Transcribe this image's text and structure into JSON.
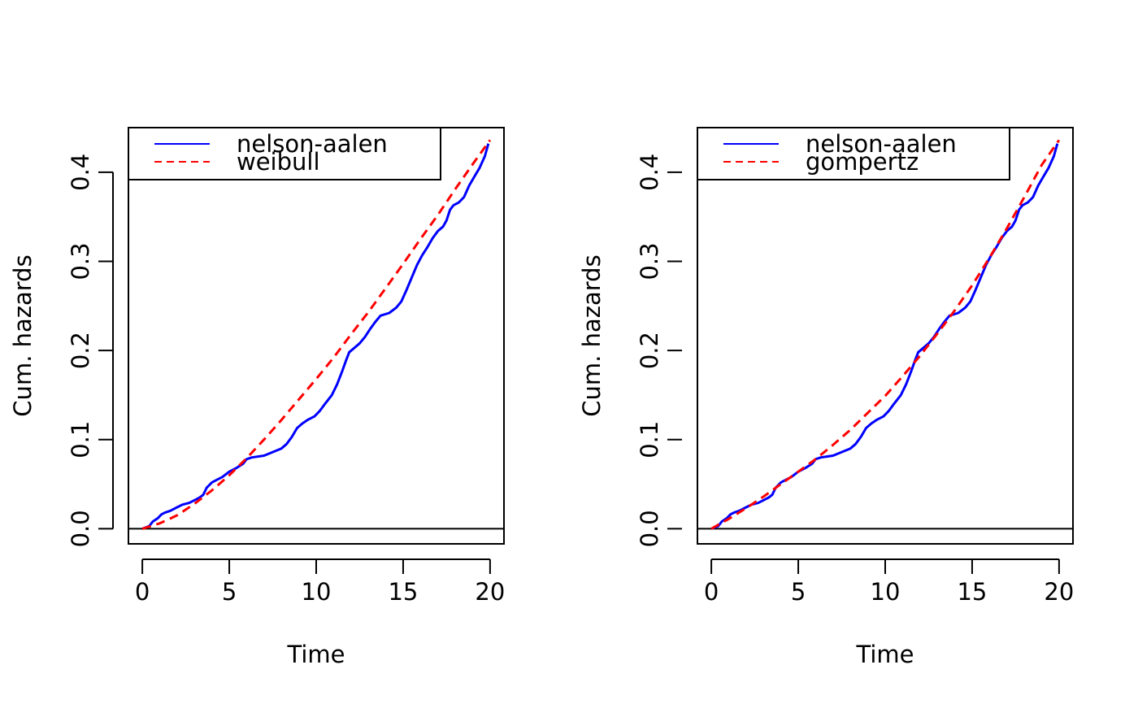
{
  "chart_data": [
    {
      "type": "line",
      "xlabel": "Time",
      "ylabel": "Cum. hazards",
      "xlim": [
        -0.8,
        20.8
      ],
      "ylim": [
        -0.017,
        0.45
      ],
      "x_ticks": [
        0,
        5,
        10,
        15,
        20
      ],
      "x_tick_labels": [
        "0",
        "5",
        "10",
        "15",
        "20"
      ],
      "y_ticks": [
        0.0,
        0.1,
        0.2,
        0.3,
        0.4
      ],
      "y_tick_labels": [
        "0.0",
        "0.1",
        "0.2",
        "0.3",
        "0.4"
      ],
      "reference_line_y": 0,
      "legend_position": "top-left",
      "series": [
        {
          "name": "nelson-aalen",
          "color": "#0000ff",
          "style": "solid",
          "points": [
            [
              0,
              0
            ],
            [
              0.4,
              0.003
            ],
            [
              0.6,
              0.008
            ],
            [
              0.9,
              0.012
            ],
            [
              1.1,
              0.016
            ],
            [
              1.3,
              0.018
            ],
            [
              1.6,
              0.02
            ],
            [
              2.0,
              0.024
            ],
            [
              2.3,
              0.027
            ],
            [
              2.7,
              0.029
            ],
            [
              3.0,
              0.032
            ],
            [
              3.3,
              0.035
            ],
            [
              3.5,
              0.038
            ],
            [
              3.7,
              0.046
            ],
            [
              4.0,
              0.052
            ],
            [
              4.3,
              0.055
            ],
            [
              4.6,
              0.058
            ],
            [
              5.0,
              0.064
            ],
            [
              5.4,
              0.068
            ],
            [
              5.8,
              0.073
            ],
            [
              6.0,
              0.078
            ],
            [
              6.3,
              0.08
            ],
            [
              7.0,
              0.082
            ],
            [
              7.5,
              0.086
            ],
            [
              8.0,
              0.09
            ],
            [
              8.3,
              0.095
            ],
            [
              8.6,
              0.103
            ],
            [
              8.9,
              0.113
            ],
            [
              9.2,
              0.118
            ],
            [
              9.5,
              0.122
            ],
            [
              9.9,
              0.126
            ],
            [
              10.2,
              0.132
            ],
            [
              10.5,
              0.14
            ],
            [
              10.9,
              0.15
            ],
            [
              11.2,
              0.162
            ],
            [
              11.5,
              0.177
            ],
            [
              11.7,
              0.188
            ],
            [
              11.9,
              0.198
            ],
            [
              12.2,
              0.203
            ],
            [
              12.5,
              0.208
            ],
            [
              12.8,
              0.215
            ],
            [
              13.1,
              0.224
            ],
            [
              13.4,
              0.232
            ],
            [
              13.7,
              0.239
            ],
            [
              14.2,
              0.242
            ],
            [
              14.6,
              0.248
            ],
            [
              14.9,
              0.255
            ],
            [
              15.2,
              0.268
            ],
            [
              15.5,
              0.282
            ],
            [
              15.8,
              0.296
            ],
            [
              16.1,
              0.307
            ],
            [
              16.4,
              0.316
            ],
            [
              16.7,
              0.326
            ],
            [
              17.0,
              0.334
            ],
            [
              17.3,
              0.339
            ],
            [
              17.5,
              0.346
            ],
            [
              17.7,
              0.358
            ],
            [
              17.9,
              0.363
            ],
            [
              18.2,
              0.366
            ],
            [
              18.5,
              0.372
            ],
            [
              18.8,
              0.385
            ],
            [
              19.1,
              0.395
            ],
            [
              19.4,
              0.405
            ],
            [
              19.7,
              0.418
            ],
            [
              19.9,
              0.432
            ]
          ]
        },
        {
          "name": "weibull",
          "color": "#ff0000",
          "style": "dashed",
          "points": [
            [
              0,
              0
            ],
            [
              1,
              0.006
            ],
            [
              2,
              0.015
            ],
            [
              3,
              0.028
            ],
            [
              4,
              0.043
            ],
            [
              5,
              0.06
            ],
            [
              6,
              0.079
            ],
            [
              7,
              0.1
            ],
            [
              8,
              0.122
            ],
            [
              9,
              0.145
            ],
            [
              10,
              0.168
            ],
            [
              11,
              0.192
            ],
            [
              12,
              0.218
            ],
            [
              13,
              0.243
            ],
            [
              14,
              0.27
            ],
            [
              15,
              0.297
            ],
            [
              16,
              0.325
            ],
            [
              17,
              0.352
            ],
            [
              18,
              0.381
            ],
            [
              19,
              0.409
            ],
            [
              20,
              0.436
            ]
          ]
        }
      ]
    },
    {
      "type": "line",
      "xlabel": "Time",
      "ylabel": "Cum. hazards",
      "xlim": [
        -0.8,
        20.8
      ],
      "ylim": [
        -0.017,
        0.45
      ],
      "x_ticks": [
        0,
        5,
        10,
        15,
        20
      ],
      "x_tick_labels": [
        "0",
        "5",
        "10",
        "15",
        "20"
      ],
      "y_ticks": [
        0.0,
        0.1,
        0.2,
        0.3,
        0.4
      ],
      "y_tick_labels": [
        "0.0",
        "0.1",
        "0.2",
        "0.3",
        "0.4"
      ],
      "reference_line_y": 0,
      "legend_position": "top-left",
      "series": [
        {
          "name": "nelson-aalen",
          "color": "#0000ff",
          "style": "solid",
          "points": [
            [
              0,
              0
            ],
            [
              0.4,
              0.003
            ],
            [
              0.6,
              0.008
            ],
            [
              0.9,
              0.012
            ],
            [
              1.1,
              0.016
            ],
            [
              1.3,
              0.018
            ],
            [
              1.6,
              0.02
            ],
            [
              2.0,
              0.024
            ],
            [
              2.3,
              0.027
            ],
            [
              2.7,
              0.029
            ],
            [
              3.0,
              0.032
            ],
            [
              3.3,
              0.035
            ],
            [
              3.5,
              0.038
            ],
            [
              3.7,
              0.046
            ],
            [
              4.0,
              0.052
            ],
            [
              4.3,
              0.055
            ],
            [
              4.6,
              0.058
            ],
            [
              5.0,
              0.064
            ],
            [
              5.4,
              0.068
            ],
            [
              5.8,
              0.073
            ],
            [
              6.0,
              0.078
            ],
            [
              6.3,
              0.08
            ],
            [
              7.0,
              0.082
            ],
            [
              7.5,
              0.086
            ],
            [
              8.0,
              0.09
            ],
            [
              8.3,
              0.095
            ],
            [
              8.6,
              0.103
            ],
            [
              8.9,
              0.113
            ],
            [
              9.2,
              0.118
            ],
            [
              9.5,
              0.122
            ],
            [
              9.9,
              0.126
            ],
            [
              10.2,
              0.132
            ],
            [
              10.5,
              0.14
            ],
            [
              10.9,
              0.15
            ],
            [
              11.2,
              0.162
            ],
            [
              11.5,
              0.177
            ],
            [
              11.7,
              0.188
            ],
            [
              11.9,
              0.198
            ],
            [
              12.2,
              0.203
            ],
            [
              12.5,
              0.208
            ],
            [
              12.8,
              0.215
            ],
            [
              13.1,
              0.224
            ],
            [
              13.4,
              0.232
            ],
            [
              13.7,
              0.239
            ],
            [
              14.2,
              0.242
            ],
            [
              14.6,
              0.248
            ],
            [
              14.9,
              0.255
            ],
            [
              15.2,
              0.268
            ],
            [
              15.5,
              0.282
            ],
            [
              15.8,
              0.296
            ],
            [
              16.1,
              0.307
            ],
            [
              16.4,
              0.316
            ],
            [
              16.7,
              0.326
            ],
            [
              17.0,
              0.334
            ],
            [
              17.3,
              0.339
            ],
            [
              17.5,
              0.346
            ],
            [
              17.7,
              0.358
            ],
            [
              17.9,
              0.363
            ],
            [
              18.2,
              0.366
            ],
            [
              18.5,
              0.372
            ],
            [
              18.8,
              0.385
            ],
            [
              19.1,
              0.395
            ],
            [
              19.4,
              0.405
            ],
            [
              19.7,
              0.418
            ],
            [
              19.9,
              0.432
            ]
          ]
        },
        {
          "name": "gompertz",
          "color": "#ff0000",
          "style": "dashed",
          "points": [
            [
              0,
              0
            ],
            [
              1,
              0.011
            ],
            [
              2,
              0.023
            ],
            [
              3,
              0.036
            ],
            [
              4,
              0.05
            ],
            [
              5,
              0.064
            ],
            [
              6,
              0.078
            ],
            [
              7,
              0.094
            ],
            [
              8,
              0.111
            ],
            [
              9,
              0.13
            ],
            [
              10,
              0.149
            ],
            [
              11,
              0.171
            ],
            [
              12,
              0.194
            ],
            [
              13,
              0.219
            ],
            [
              14,
              0.245
            ],
            [
              15,
              0.273
            ],
            [
              16,
              0.304
            ],
            [
              17,
              0.337
            ],
            [
              18,
              0.372
            ],
            [
              19,
              0.408
            ],
            [
              20,
              0.436
            ]
          ]
        }
      ]
    }
  ]
}
